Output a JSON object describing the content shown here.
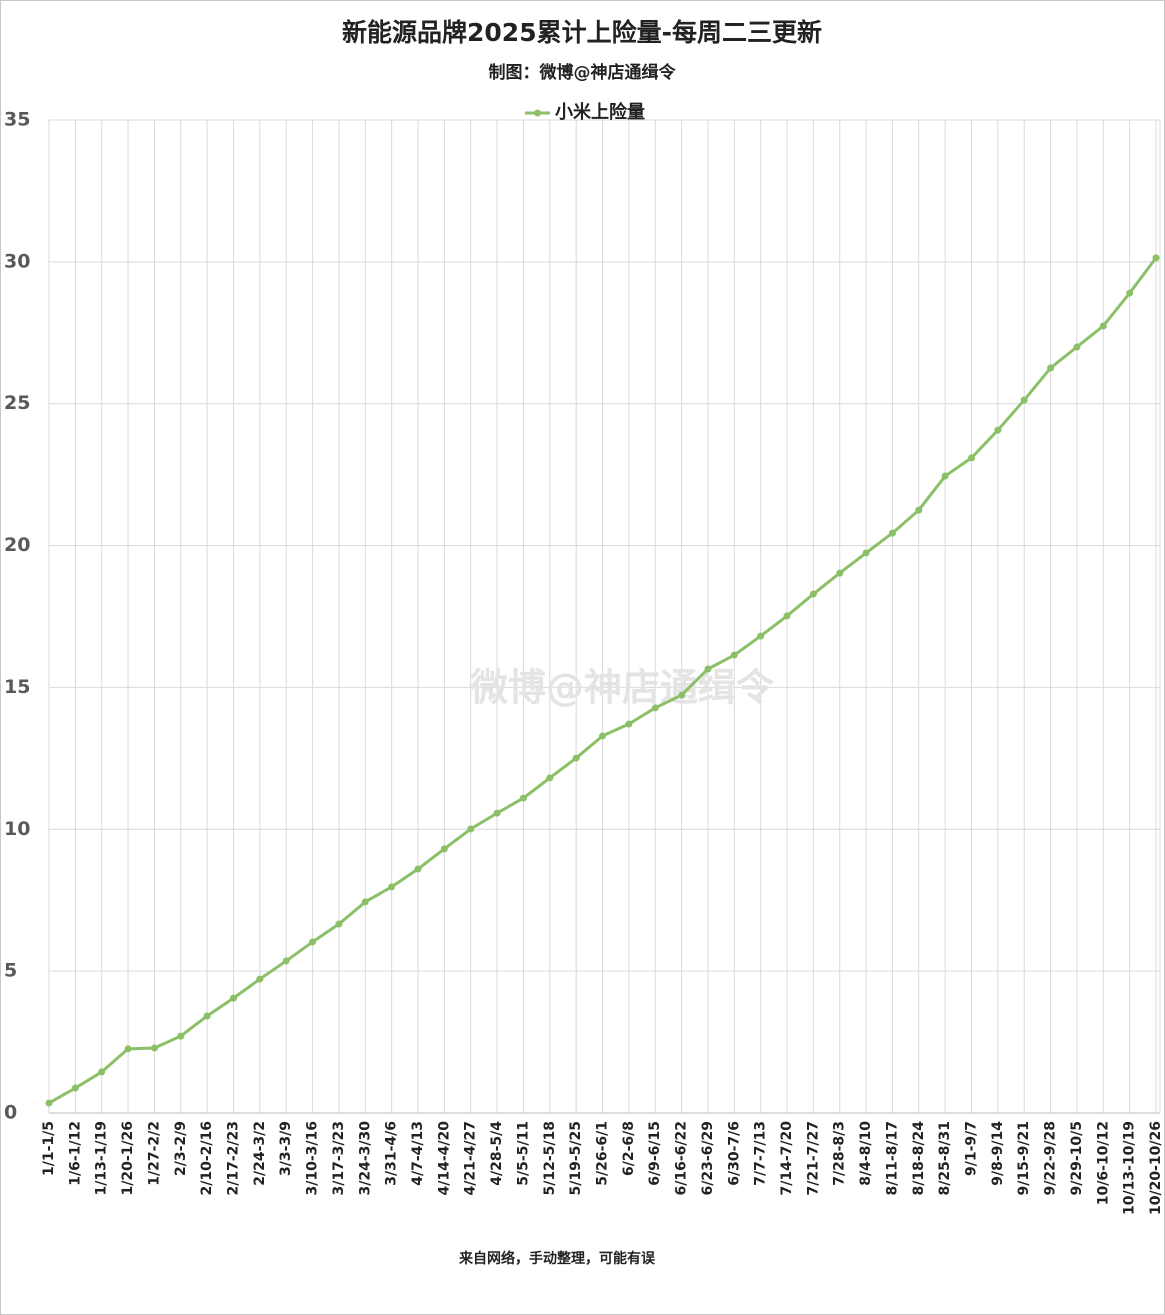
{
  "chart_data": {
    "type": "line",
    "title": "新能源品牌2025累计上险量-每周二三更新",
    "subtitle": "制图：微博@神店通缉令",
    "watermark": "微博@神店通缉令",
    "footnote": "来自网络，手动整理，可能有误",
    "categories": [
      "1/1-1/5",
      "1/6-1/12",
      "1/13-1/19",
      "1/20-1/26",
      "1/27-2/2",
      "2/3-2/9",
      "2/10-2/16",
      "2/17-2/23",
      "2/24-3/2",
      "3/3-3/9",
      "3/10-3/16",
      "3/17-3/23",
      "3/24-3/30",
      "3/31-4/6",
      "4/7-4/13",
      "4/14-4/20",
      "4/21-4/27",
      "4/28-5/4",
      "5/5-5/11",
      "5/12-5/18",
      "5/19-5/25",
      "5/26-6/1",
      "6/2-6/8",
      "6/9-6/15",
      "6/16-6/22",
      "6/23-6/29",
      "6/30-7/6",
      "7/7-7/13",
      "7/14-7/20",
      "7/21-7/27",
      "7/28-8/3",
      "8/4-8/10",
      "8/11-8/17",
      "8/18-8/24",
      "8/25-8/31",
      "9/1-9/7",
      "9/8-9/14",
      "9/15-9/21",
      "9/22-9/28",
      "9/29-10/5",
      "10/6-10/12",
      "10/13-10/19",
      "10/20-10/26"
    ],
    "series": [
      {
        "name": "小米上险量",
        "color": "#8cc068",
        "values": [
          0.35,
          0.88,
          1.45,
          2.26,
          2.29,
          2.71,
          3.42,
          4.05,
          4.72,
          5.36,
          6.03,
          6.66,
          7.44,
          7.97,
          8.6,
          9.31,
          10.01,
          10.57,
          11.1,
          11.81,
          12.51,
          13.29,
          13.71,
          14.28,
          14.73,
          15.65,
          16.14,
          16.81,
          17.52,
          18.29,
          19.03,
          19.74,
          20.44,
          21.25,
          22.45,
          23.09,
          24.07,
          25.13,
          26.26,
          27.0,
          27.74,
          28.9,
          30.14
        ]
      }
    ],
    "ylim": [
      0,
      35
    ],
    "yticks": [
      0,
      5,
      10,
      15,
      20,
      25,
      30,
      35
    ],
    "grid": true,
    "legend": "top"
  }
}
